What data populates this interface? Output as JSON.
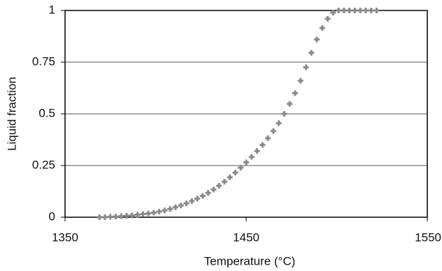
{
  "chart_data": {
    "type": "scatter",
    "x_label": "Temperature (°C)",
    "y_label": "Liquid fraction",
    "x": [
      1369,
      1372,
      1375,
      1378,
      1381,
      1384,
      1387,
      1390,
      1393,
      1396,
      1399,
      1402,
      1405,
      1408,
      1411,
      1414,
      1417,
      1420,
      1423,
      1426,
      1429,
      1432,
      1435,
      1438,
      1441,
      1444,
      1447,
      1450,
      1453,
      1456,
      1459,
      1462,
      1465,
      1468,
      1471,
      1474,
      1477,
      1480,
      1483,
      1486,
      1489,
      1492,
      1495,
      1498,
      1501,
      1504,
      1507,
      1510,
      1513,
      1516,
      1519,
      1522
    ],
    "values": [
      0,
      0,
      0.002,
      0.003,
      0.005,
      0.007,
      0.009,
      0.012,
      0.015,
      0.018,
      0.022,
      0.027,
      0.033,
      0.04,
      0.048,
      0.057,
      0.067,
      0.078,
      0.09,
      0.103,
      0.118,
      0.134,
      0.152,
      0.172,
      0.193,
      0.216,
      0.24,
      0.265,
      0.292,
      0.32,
      0.35,
      0.382,
      0.417,
      0.455,
      0.5,
      0.548,
      0.6,
      0.66,
      0.725,
      0.795,
      0.86,
      0.915,
      0.96,
      0.99,
      1,
      1,
      1,
      1,
      1,
      1,
      1,
      1
    ],
    "color": "#8a8a8a",
    "xlim": [
      1350,
      1550
    ],
    "xticks": [
      1350,
      1450,
      1550
    ],
    "ylim": [
      0,
      1
    ],
    "yticks": [
      0,
      0.25,
      0.5,
      0.75,
      1
    ],
    "grid": true
  }
}
